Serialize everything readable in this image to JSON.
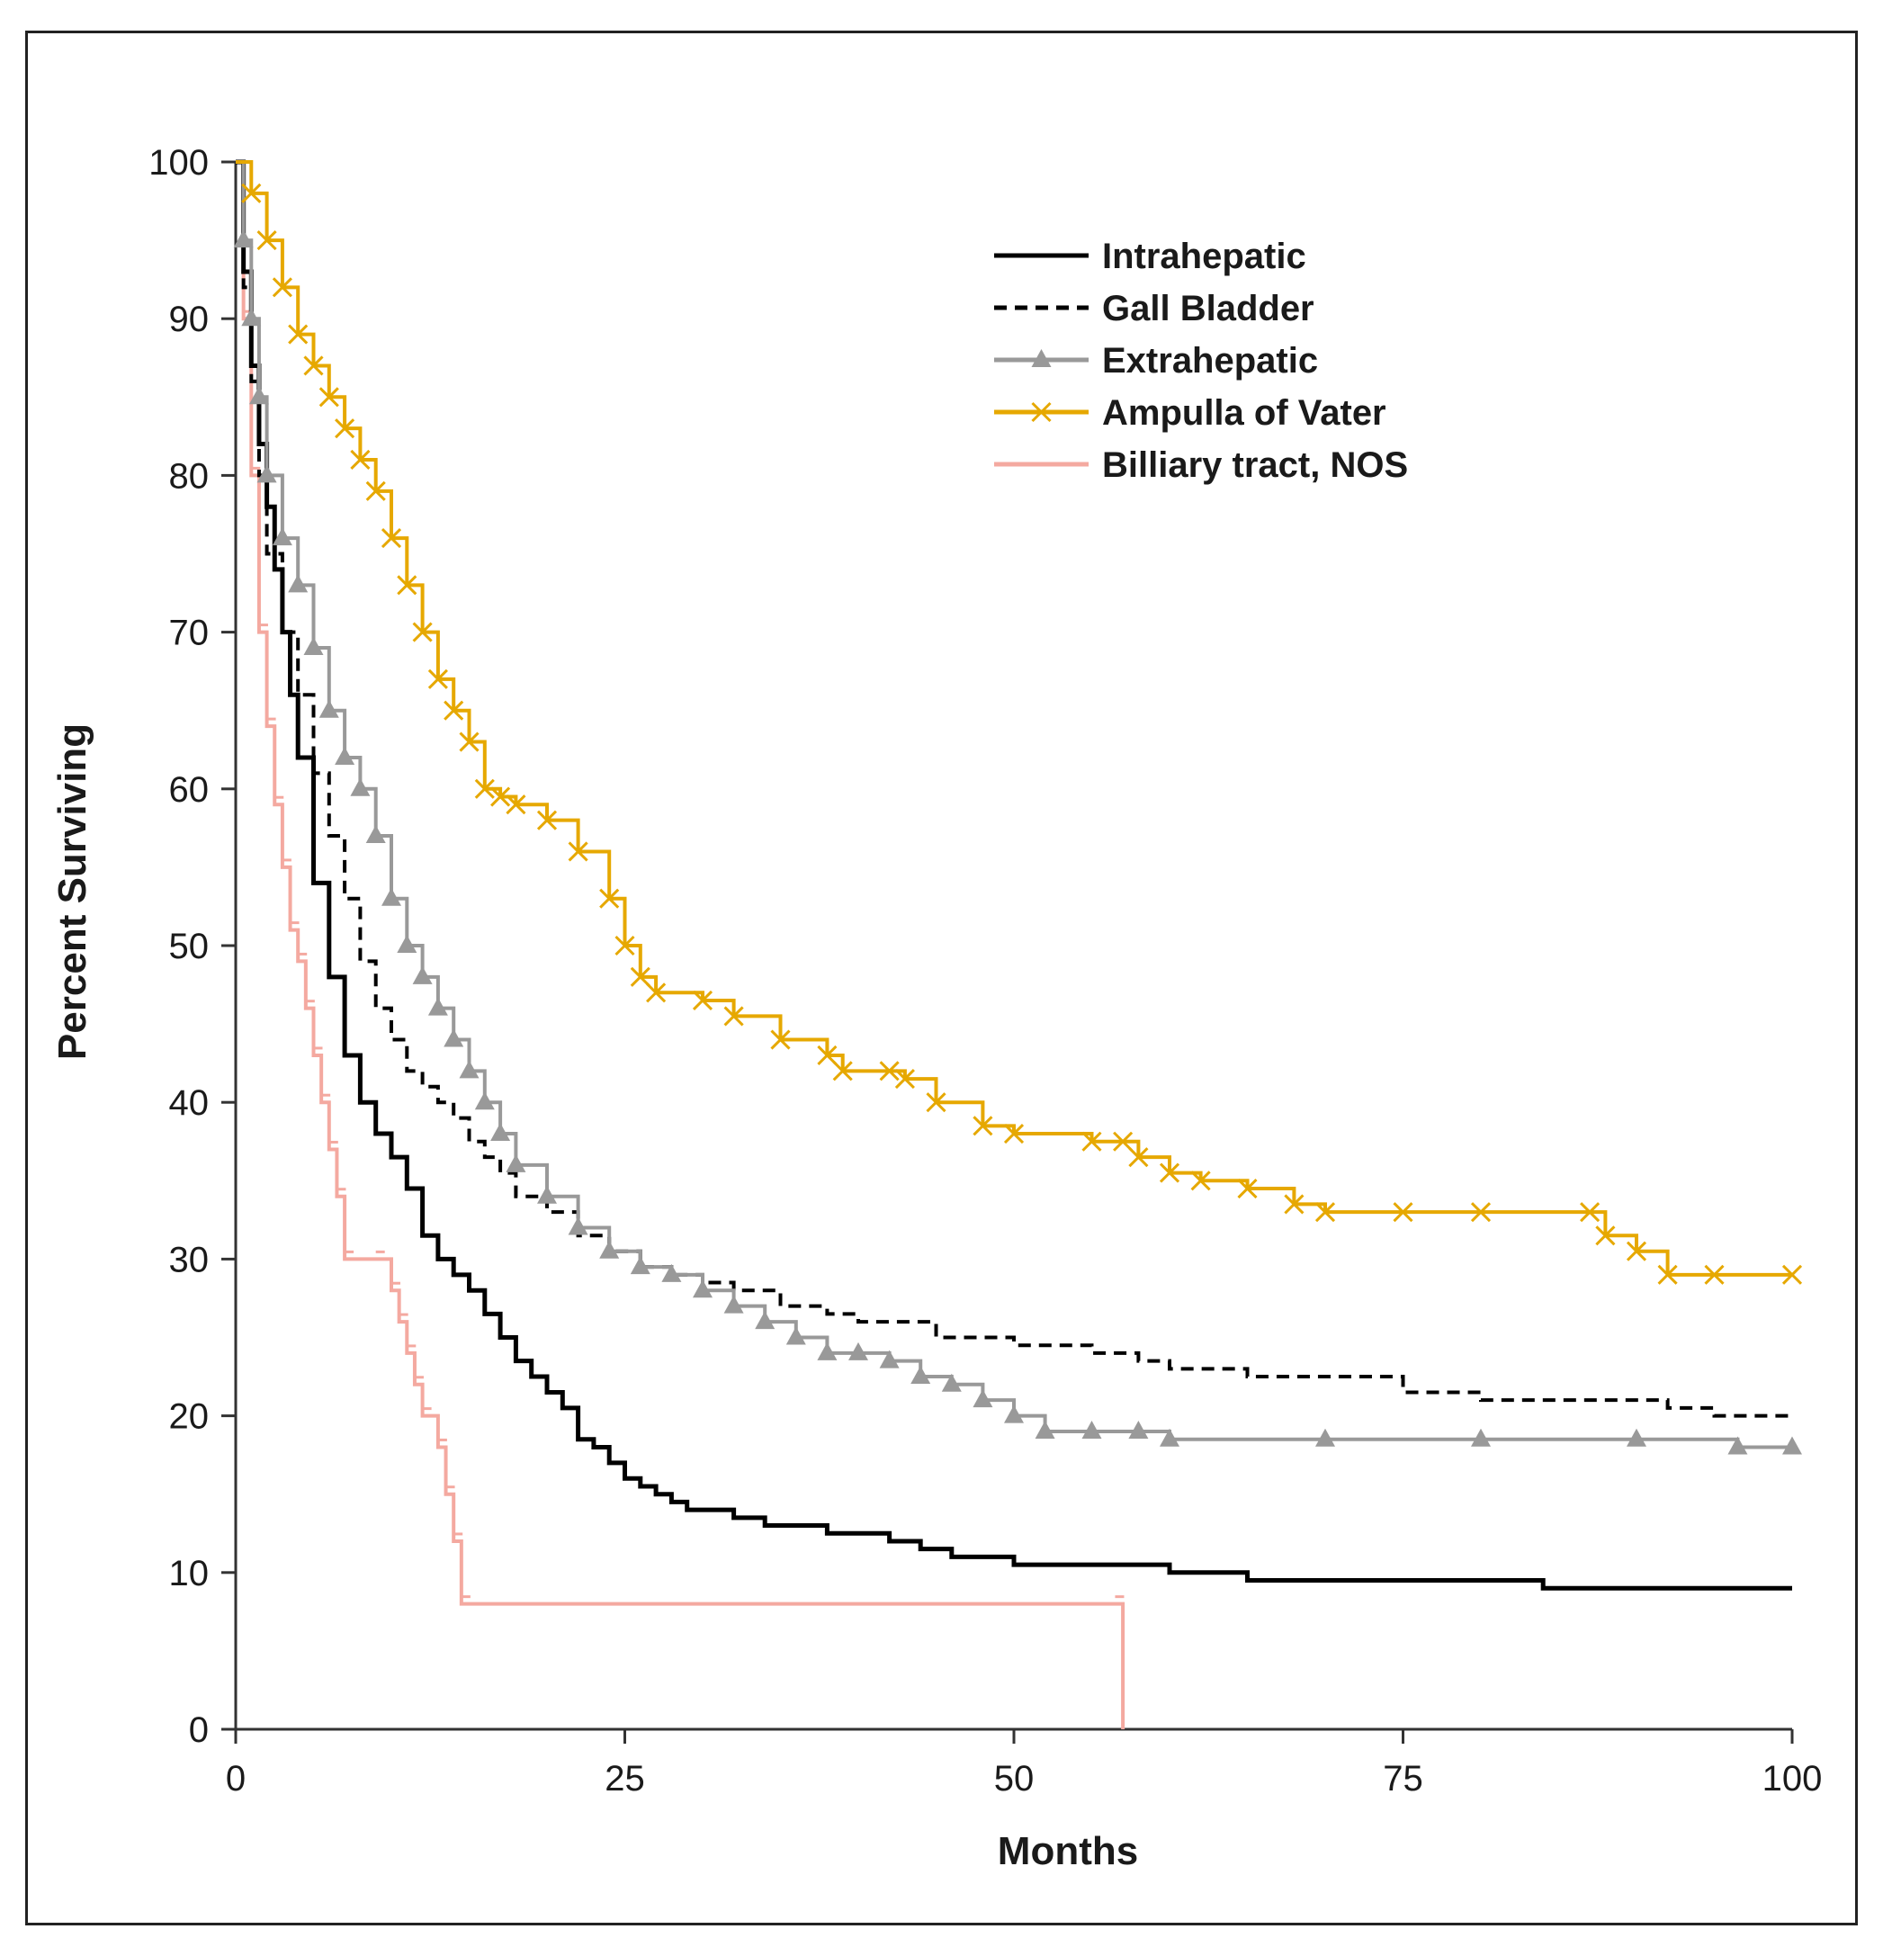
{
  "chart_data": {
    "type": "line",
    "title": "",
    "xlabel": "Months",
    "ylabel": "Percent Surviving",
    "xlim": [
      0,
      100
    ],
    "ylim": [
      0,
      100
    ],
    "xticks": [
      0,
      25,
      50,
      75,
      100
    ],
    "yticks": [
      0,
      10,
      20,
      30,
      40,
      50,
      60,
      70,
      80,
      90,
      100
    ],
    "grid": false,
    "legend": "top-right",
    "series": [
      {
        "name": "Intrahepatic",
        "color": "#000000",
        "style": "solid",
        "marker": "none",
        "x": [
          0,
          0.5,
          1,
          1.5,
          2,
          2.5,
          3,
          3.5,
          4,
          5,
          6,
          7,
          8,
          9,
          10,
          11,
          12,
          13,
          14,
          15,
          16,
          17,
          18,
          19,
          20,
          21,
          22,
          23,
          24,
          25,
          26,
          27,
          28,
          29,
          30,
          32,
          34,
          36,
          38,
          40,
          42,
          44,
          46,
          48,
          50,
          55,
          58,
          60,
          65,
          70,
          75,
          80,
          84,
          90,
          95,
          100
        ],
        "y": [
          100,
          93,
          87,
          82,
          78,
          74,
          70,
          66,
          62,
          54,
          48,
          43,
          40,
          38,
          36.5,
          34.5,
          31.5,
          30,
          29,
          28,
          26.5,
          25,
          23.5,
          22.5,
          21.5,
          20.5,
          18.5,
          18,
          17,
          16,
          15.5,
          15,
          14.5,
          14,
          14,
          13.5,
          13,
          13,
          12.5,
          12.5,
          12,
          11.5,
          11,
          11,
          10.5,
          10.5,
          10.5,
          10,
          9.5,
          9.5,
          9.5,
          9.5,
          9,
          9,
          9,
          9
        ]
      },
      {
        "name": "Gall Bladder",
        "color": "#000000",
        "style": "dashed",
        "marker": "none",
        "x": [
          0,
          0.5,
          1,
          1.5,
          2,
          3,
          4,
          5,
          6,
          7,
          8,
          9,
          10,
          11,
          12,
          13,
          14,
          15,
          16,
          17,
          18,
          20,
          22,
          24,
          26,
          28,
          30,
          32,
          35,
          38,
          40,
          45,
          50,
          55,
          58,
          60,
          65,
          70,
          75,
          80,
          85,
          90,
          92,
          95,
          100
        ],
        "y": [
          100,
          92,
          86,
          80,
          75,
          70,
          66,
          61,
          57,
          53,
          49,
          46,
          44,
          42,
          41,
          40,
          39,
          37.5,
          36.5,
          35.5,
          34,
          33,
          31.5,
          30.5,
          29.5,
          29,
          28.5,
          28,
          27,
          26.5,
          26,
          25,
          24.5,
          24,
          23.5,
          23,
          22.5,
          22.5,
          21.5,
          21,
          21,
          21,
          20.5,
          20,
          20
        ]
      },
      {
        "name": "Extrahepatic",
        "color": "#999999",
        "style": "solid",
        "marker": "triangle",
        "x": [
          0,
          0.5,
          1,
          1.5,
          2,
          3,
          4,
          5,
          6,
          7,
          8,
          9,
          10,
          11,
          12,
          13,
          14,
          15,
          16,
          17,
          18,
          20,
          22,
          24,
          26,
          28,
          30,
          32,
          34,
          36,
          38,
          40,
          42,
          44,
          46,
          48,
          50,
          52,
          55,
          58,
          60,
          70,
          80,
          90,
          96.5,
          100
        ],
        "y": [
          100,
          95,
          90,
          85,
          80,
          76,
          73,
          69,
          65,
          62,
          60,
          57,
          53,
          50,
          48,
          46,
          44,
          42,
          40,
          38,
          36,
          34,
          32,
          30.5,
          29.5,
          29,
          28,
          27,
          26,
          25,
          24,
          24,
          23.5,
          22.5,
          22,
          21,
          20,
          19,
          19,
          19,
          18.5,
          18.5,
          18.5,
          18.5,
          18,
          18
        ]
      },
      {
        "name": "Ampulla of Vater",
        "color": "#E6A800",
        "style": "solid",
        "marker": "x",
        "x": [
          0,
          1,
          2,
          3,
          4,
          5,
          6,
          7,
          8,
          9,
          10,
          11,
          12,
          13,
          14,
          15,
          16,
          17,
          18,
          20,
          22,
          24,
          25,
          26,
          27,
          30,
          32,
          35,
          38,
          39,
          42,
          43,
          45,
          48,
          50,
          55,
          57,
          58,
          60,
          62,
          65,
          68,
          70,
          75,
          80,
          87,
          88,
          90,
          92,
          95,
          100
        ],
        "y": [
          100,
          98,
          95,
          92,
          89,
          87,
          85,
          83,
          81,
          79,
          76,
          73,
          70,
          67,
          65,
          63,
          60,
          59.5,
          59,
          58,
          56,
          53,
          50,
          48,
          47,
          46.5,
          45.5,
          44,
          43,
          42,
          42,
          41.5,
          40,
          38.5,
          38,
          37.5,
          37.5,
          36.5,
          35.5,
          35,
          34.5,
          33.5,
          33,
          33,
          33,
          33,
          31.5,
          30.5,
          29,
          29,
          29
        ]
      },
      {
        "name": "Billiary tract, NOS",
        "color": "#F4A9A0",
        "style": "solid",
        "marker": "none",
        "step": true,
        "x": [
          0,
          0.5,
          1,
          1.5,
          2,
          2.5,
          3,
          3.5,
          4,
          4.5,
          5,
          5.5,
          6,
          6.5,
          7,
          9,
          10,
          10.5,
          11,
          11.5,
          12,
          13,
          13.5,
          14,
          14.5,
          56.5,
          57
        ],
        "y": [
          100,
          90,
          80,
          70,
          64,
          59,
          55,
          51,
          49,
          46,
          43,
          40,
          37,
          34,
          30,
          30,
          28,
          26,
          24,
          22,
          20,
          18,
          15,
          12,
          8,
          8,
          0
        ]
      }
    ]
  }
}
